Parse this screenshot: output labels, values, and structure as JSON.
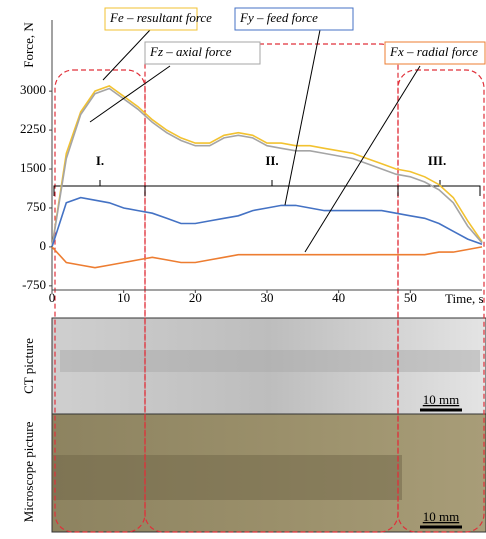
{
  "chart_data": {
    "type": "line",
    "x_label": "Time, s",
    "y_label": "Force, N",
    "xlim": [
      0,
      60
    ],
    "ylim": [
      -830,
      4370
    ],
    "xticks": [
      0,
      10,
      20,
      30,
      40,
      50
    ],
    "yticks": [
      -750,
      0,
      750,
      1500,
      2250,
      3000
    ],
    "x": [
      0,
      2,
      4,
      6,
      8,
      10,
      12,
      14,
      16,
      18,
      20,
      22,
      24,
      26,
      28,
      30,
      32,
      34,
      36,
      38,
      40,
      42,
      44,
      46,
      48,
      50,
      52,
      54,
      56,
      58,
      60
    ],
    "series": [
      {
        "name": "Fe – resultant force",
        "color": "#f2c230",
        "values": [
          0,
          1800,
          2600,
          3000,
          3100,
          2900,
          2700,
          2450,
          2250,
          2100,
          2000,
          2000,
          2150,
          2200,
          2150,
          2000,
          2000,
          1950,
          1950,
          1900,
          1850,
          1800,
          1700,
          1600,
          1500,
          1450,
          1350,
          1200,
          950,
          500,
          100
        ]
      },
      {
        "name": "Fz – axial force",
        "color": "#a5a5a5",
        "values": [
          0,
          1700,
          2550,
          2950,
          3050,
          2850,
          2650,
          2400,
          2200,
          2050,
          1950,
          1950,
          2100,
          2150,
          2100,
          1950,
          1900,
          1850,
          1850,
          1800,
          1750,
          1700,
          1600,
          1500,
          1400,
          1350,
          1250,
          1100,
          850,
          400,
          80
        ]
      },
      {
        "name": "Fy – feed force",
        "color": "#4472c4",
        "values": [
          0,
          850,
          950,
          900,
          850,
          750,
          700,
          650,
          550,
          450,
          450,
          500,
          550,
          600,
          700,
          750,
          800,
          800,
          750,
          700,
          700,
          700,
          700,
          700,
          650,
          600,
          550,
          450,
          300,
          150,
          50
        ]
      },
      {
        "name": "Fx – radial force",
        "color": "#ed7d31",
        "values": [
          0,
          -300,
          -350,
          -400,
          -350,
          -300,
          -250,
          -200,
          -250,
          -300,
          -300,
          -250,
          -200,
          -150,
          -150,
          -150,
          -150,
          -150,
          -150,
          -150,
          -150,
          -150,
          -150,
          -150,
          -150,
          -150,
          -150,
          -100,
          -100,
          -50,
          0
        ]
      }
    ],
    "phases": [
      "I.",
      "II.",
      "III."
    ]
  },
  "images": [
    {
      "label": "CT picture",
      "scale": "10 mm"
    },
    {
      "label": "Microscope picture",
      "scale": "10 mm"
    }
  ]
}
